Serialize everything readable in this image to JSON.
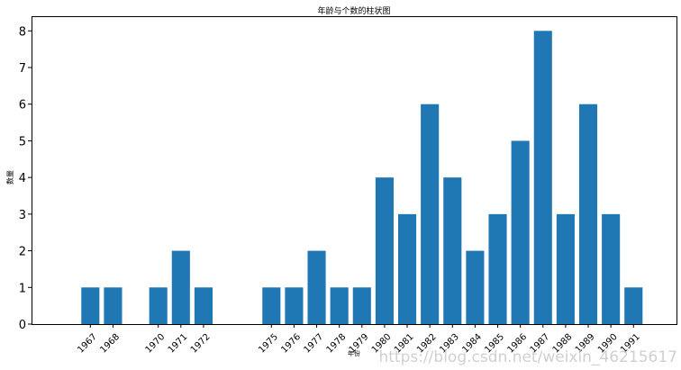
{
  "chart_data": {
    "type": "bar",
    "title": "年龄与个数的柱状图",
    "xlabel": "年份",
    "ylabel": "数量",
    "ylim": [
      0,
      8.4
    ],
    "yticks": [
      0,
      1,
      2,
      3,
      4,
      5,
      6,
      7,
      8
    ],
    "xlim": [
      1964.4,
      1992.9
    ],
    "grid": false,
    "bar_color": "#1f77b4",
    "x": [
      1967,
      1968,
      1970,
      1971,
      1972,
      1975,
      1976,
      1977,
      1978,
      1979,
      1980,
      1981,
      1982,
      1983,
      1984,
      1985,
      1986,
      1987,
      1988,
      1989,
      1990,
      1991
    ],
    "values": [
      1,
      1,
      1,
      2,
      1,
      1,
      1,
      2,
      1,
      1,
      4,
      3,
      6,
      4,
      2,
      3,
      5,
      8,
      3,
      6,
      3,
      1
    ],
    "xtick_labels": [
      "1967",
      "1968",
      "1970",
      "1971",
      "1972",
      "1975",
      "1976",
      "1977",
      "1978",
      "1979",
      "1980",
      "1981",
      "1982",
      "1983",
      "1984",
      "1985",
      "1986",
      "1987",
      "1988",
      "1989",
      "1990",
      "1991"
    ]
  },
  "watermark": "https://blog.csdn.net/weixin_46215617"
}
